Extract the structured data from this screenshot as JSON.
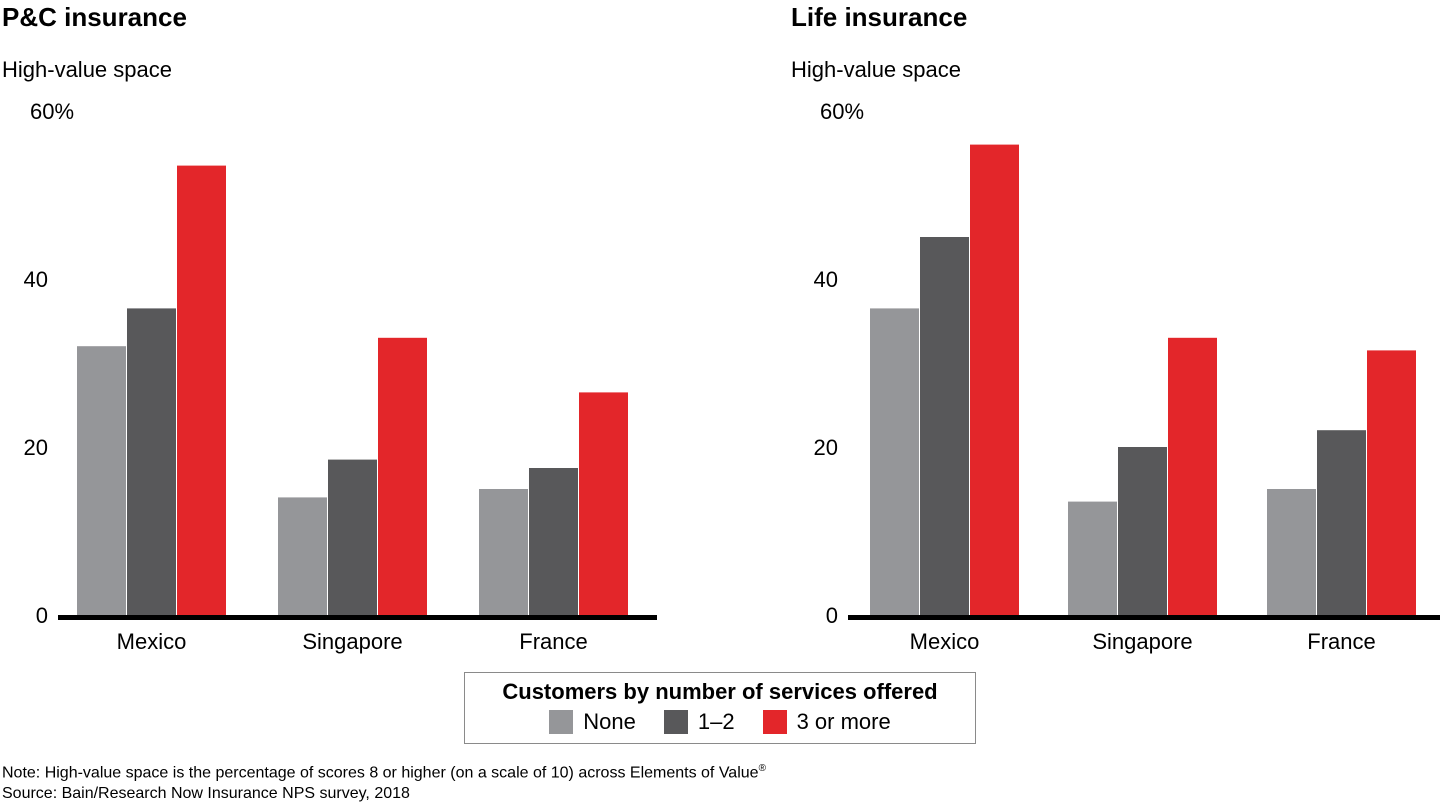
{
  "chart_data": [
    {
      "type": "bar",
      "title": "P&C insurance",
      "ylabel": "High-value space",
      "ylim": [
        0,
        60
      ],
      "yticks": [
        "0",
        "20",
        "40",
        "60%"
      ],
      "categories": [
        "Mexico",
        "Singapore",
        "France"
      ],
      "series": [
        {
          "name": "None",
          "values": [
            32,
            14,
            15
          ]
        },
        {
          "name": "1–2",
          "values": [
            36.5,
            18.5,
            17.5
          ]
        },
        {
          "name": "3 or more",
          "values": [
            53.5,
            33,
            26.5
          ]
        }
      ],
      "grid": false
    },
    {
      "type": "bar",
      "title": "Life insurance",
      "ylabel": "High-value space",
      "ylim": [
        0,
        60
      ],
      "yticks": [
        "0",
        "20",
        "40",
        "60%"
      ],
      "categories": [
        "Mexico",
        "Singapore",
        "France"
      ],
      "series": [
        {
          "name": "None",
          "values": [
            36.5,
            13.5,
            15
          ]
        },
        {
          "name": "1–2",
          "values": [
            45,
            20,
            22
          ]
        },
        {
          "name": "3 or more",
          "values": [
            56,
            33,
            31.5
          ]
        }
      ],
      "grid": false
    }
  ],
  "colors": {
    "None": "#959699",
    "1–2": "#58585a",
    "3 or more": "#e3262a",
    "axis": "#000000"
  },
  "legend": {
    "title": "Customers by number of services offered",
    "items": [
      "None",
      "1–2",
      "3 or more"
    ],
    "placement": "bottom-center"
  },
  "note": "Note: High-value space is the percentage of scores 8 or higher (on a scale of 10) across Elements of Value",
  "note_mark": "®",
  "source": "Source: Bain/Research Now Insurance NPS survey, 2018"
}
